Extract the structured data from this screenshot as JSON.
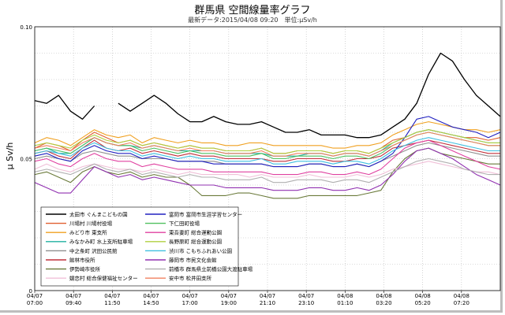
{
  "title": "群馬県 空間線量率グラフ",
  "subtitle": "最新データ:2015/04/08 09:20　単位:μSv/h",
  "chart_data": {
    "type": "line",
    "ylabel": "μ Sv/h",
    "ylim": [
      0,
      0.1
    ],
    "yticks": [
      {
        "value": 0.1,
        "label": "0.10"
      },
      {
        "value": 0.05,
        "label": "0.05"
      },
      {
        "value": 0.0,
        "label": "0"
      }
    ],
    "xticks": [
      {
        "line1": "04/07",
        "line2": "07:00"
      },
      {
        "line1": "04/07",
        "line2": "09:40"
      },
      {
        "line1": "04/07",
        "line2": "11:50"
      },
      {
        "line1": "04/07",
        "line2": "14:50"
      },
      {
        "line1": "04/07",
        "line2": "17:00"
      },
      {
        "line1": "04/07",
        "line2": "19:00"
      },
      {
        "line1": "04/07",
        "line2": "21:10"
      },
      {
        "line1": "04/07",
        "line2": "23:10"
      },
      {
        "line1": "04/08",
        "line2": "01:10"
      },
      {
        "line1": "04/08",
        "line2": "03:20"
      },
      {
        "line1": "04/08",
        "line2": "05:20"
      },
      {
        "line1": "04/08",
        "line2": "07:20"
      }
    ],
    "grid": true,
    "legend_position": "bottom-left",
    "series": [
      {
        "name": "太田市 ぐんまこどもの国",
        "color": "#000000",
        "values": [
          0.072,
          0.071,
          0.074,
          0.068,
          0.065,
          0.07,
          null,
          0.071,
          0.068,
          0.071,
          0.074,
          0.071,
          0.067,
          0.064,
          0.064,
          0.066,
          0.064,
          0.063,
          0.063,
          0.064,
          0.062,
          0.06,
          0.06,
          0.061,
          0.059,
          0.059,
          0.059,
          0.058,
          0.058,
          0.059,
          0.062,
          0.065,
          0.071,
          0.082,
          0.09,
          0.087,
          0.08,
          0.074,
          0.07,
          0.066
        ]
      },
      {
        "name": "川場村 川場村役場",
        "color": "#e06030",
        "values": [
          0.054,
          0.056,
          0.055,
          0.053,
          0.057,
          0.06,
          0.058,
          0.056,
          0.057,
          0.055,
          0.056,
          0.055,
          0.054,
          0.055,
          0.054,
          0.054,
          0.053,
          0.053,
          0.053,
          0.054,
          0.052,
          0.052,
          0.053,
          0.053,
          0.053,
          0.052,
          0.053,
          0.053,
          0.052,
          0.054,
          0.057,
          0.058,
          0.06,
          0.061,
          0.06,
          0.059,
          0.058,
          0.058,
          0.057,
          0.058
        ]
      },
      {
        "name": "みどり市 東支所",
        "color": "#f0a020",
        "values": [
          0.056,
          0.058,
          0.057,
          0.055,
          0.058,
          0.061,
          0.059,
          0.058,
          0.059,
          0.056,
          0.058,
          0.057,
          0.056,
          0.057,
          0.056,
          0.056,
          0.055,
          0.055,
          0.056,
          0.056,
          0.055,
          0.055,
          0.055,
          0.055,
          0.055,
          0.054,
          0.054,
          0.055,
          0.055,
          0.056,
          0.059,
          0.061,
          0.063,
          0.064,
          0.063,
          0.062,
          0.061,
          0.061,
          0.06,
          0.061
        ]
      },
      {
        "name": "みなかみ町 水上支所駐車場",
        "color": "#20b0a0",
        "values": [
          0.053,
          0.054,
          0.052,
          0.052,
          0.055,
          0.058,
          0.056,
          0.055,
          0.055,
          0.054,
          0.055,
          0.054,
          0.053,
          0.053,
          0.053,
          0.053,
          0.052,
          0.052,
          0.052,
          0.052,
          0.051,
          0.051,
          0.051,
          0.052,
          0.052,
          0.051,
          0.052,
          0.052,
          0.051,
          0.053,
          0.056,
          0.058,
          0.06,
          0.061,
          0.06,
          0.059,
          0.058,
          0.057,
          0.056,
          0.056
        ]
      },
      {
        "name": "中之条町 沢田公民館",
        "color": "#909090",
        "values": [
          0.05,
          0.051,
          0.05,
          0.049,
          0.052,
          0.053,
          0.052,
          0.051,
          0.051,
          0.05,
          0.05,
          0.05,
          0.049,
          0.049,
          0.049,
          0.049,
          0.048,
          0.048,
          0.048,
          0.048,
          0.047,
          0.047,
          0.047,
          0.048,
          0.048,
          0.047,
          0.047,
          0.048,
          0.047,
          0.049,
          0.051,
          0.053,
          0.055,
          0.056,
          0.055,
          0.054,
          0.053,
          0.052,
          0.051,
          0.051
        ]
      },
      {
        "name": "館林市役所",
        "color": "#c0303a",
        "values": [
          0.052,
          0.053,
          0.051,
          0.05,
          0.054,
          0.057,
          0.054,
          0.053,
          0.054,
          0.052,
          0.053,
          0.052,
          0.051,
          0.052,
          0.051,
          0.051,
          0.05,
          0.05,
          0.05,
          0.05,
          0.049,
          0.049,
          0.05,
          0.05,
          0.05,
          0.049,
          0.049,
          0.05,
          0.05,
          0.051,
          0.054,
          0.055,
          0.056,
          0.057,
          0.056,
          0.055,
          0.054,
          0.053,
          0.052,
          0.052
        ]
      },
      {
        "name": "伊勢崎市役所",
        "color": "#6a7a3a",
        "values": [
          0.044,
          0.045,
          0.043,
          0.041,
          0.045,
          0.047,
          0.045,
          0.044,
          0.045,
          0.043,
          0.044,
          0.043,
          0.043,
          0.04,
          0.036,
          0.036,
          0.036,
          0.037,
          0.037,
          0.036,
          0.035,
          0.035,
          0.035,
          0.036,
          0.036,
          0.036,
          0.036,
          0.036,
          0.037,
          0.038,
          0.045,
          0.05,
          0.053,
          0.054,
          0.052,
          0.051,
          0.05,
          0.049,
          0.048,
          0.048
        ]
      },
      {
        "name": "嬬恋村 総合保健福祉センター",
        "color": "#f0c0d8",
        "values": [
          0.046,
          0.048,
          0.046,
          0.045,
          0.047,
          0.048,
          0.047,
          0.046,
          0.046,
          0.045,
          0.046,
          0.045,
          0.044,
          0.045,
          0.044,
          0.044,
          0.044,
          0.044,
          0.043,
          0.044,
          0.043,
          0.043,
          0.043,
          0.044,
          0.043,
          0.043,
          0.043,
          0.044,
          0.043,
          0.044,
          0.046,
          0.047,
          0.048,
          0.049,
          0.048,
          0.047,
          0.046,
          0.045,
          0.045,
          0.044
        ]
      },
      {
        "name": "富岡市 富岡市生涯学習センター",
        "color": "#2020c0",
        "values": [
          0.051,
          0.052,
          0.05,
          0.049,
          0.053,
          0.055,
          0.053,
          0.052,
          0.052,
          0.05,
          0.051,
          0.05,
          0.049,
          0.049,
          0.049,
          0.048,
          0.048,
          0.048,
          0.048,
          0.048,
          0.047,
          0.047,
          0.047,
          0.048,
          0.048,
          0.047,
          0.047,
          0.048,
          0.047,
          0.049,
          0.052,
          0.058,
          0.065,
          0.066,
          0.064,
          0.062,
          0.061,
          0.06,
          0.058,
          0.06
        ]
      },
      {
        "name": "下仁田町役場",
        "color": "#50c060",
        "values": [
          0.053,
          0.054,
          0.053,
          0.052,
          0.055,
          0.058,
          0.056,
          0.055,
          0.055,
          0.053,
          0.054,
          0.053,
          0.052,
          0.053,
          0.052,
          0.052,
          0.051,
          0.051,
          0.051,
          0.052,
          0.05,
          0.05,
          0.051,
          0.051,
          0.051,
          0.05,
          0.051,
          0.051,
          0.05,
          0.052,
          0.055,
          0.057,
          0.059,
          0.06,
          0.059,
          0.058,
          0.057,
          0.056,
          0.055,
          0.055
        ]
      },
      {
        "name": "東吾妻町 総合運動公園",
        "color": "#e040a0",
        "values": [
          0.049,
          0.05,
          0.048,
          0.047,
          0.05,
          0.052,
          0.05,
          0.049,
          0.049,
          0.047,
          0.048,
          0.047,
          0.046,
          0.046,
          0.046,
          0.045,
          0.045,
          0.045,
          0.045,
          0.045,
          0.044,
          0.044,
          0.044,
          0.045,
          0.045,
          0.044,
          0.044,
          0.045,
          0.044,
          0.046,
          0.05,
          0.054,
          0.056,
          0.057,
          0.055,
          0.053,
          0.051,
          0.049,
          0.047,
          0.046
        ]
      },
      {
        "name": "長野原町 総合運動公園",
        "color": "#b0d040",
        "values": [
          0.055,
          0.056,
          0.055,
          0.054,
          0.057,
          0.059,
          0.057,
          0.056,
          0.057,
          0.055,
          0.056,
          0.055,
          0.054,
          0.055,
          0.054,
          0.054,
          0.053,
          0.053,
          0.053,
          0.054,
          0.052,
          0.052,
          0.053,
          0.053,
          0.053,
          0.052,
          0.053,
          0.053,
          0.052,
          0.054,
          0.056,
          0.058,
          0.06,
          0.061,
          0.06,
          0.059,
          0.058,
          0.057,
          0.056,
          0.056
        ]
      },
      {
        "name": "渋川市 こもちふれあい公園",
        "color": "#40c0e0",
        "values": [
          0.052,
          0.053,
          0.052,
          0.051,
          0.054,
          0.056,
          0.054,
          0.053,
          0.053,
          0.051,
          0.052,
          0.051,
          0.05,
          0.051,
          0.05,
          0.05,
          0.049,
          0.049,
          0.049,
          0.05,
          0.048,
          0.048,
          0.049,
          0.049,
          0.049,
          0.048,
          0.049,
          0.049,
          0.048,
          0.05,
          0.053,
          0.055,
          0.057,
          0.058,
          0.057,
          0.056,
          0.055,
          0.054,
          0.053,
          0.053
        ]
      },
      {
        "name": "藤岡市 市民文化会館",
        "color": "#9030b0",
        "values": [
          0.041,
          0.039,
          0.037,
          0.037,
          0.042,
          0.047,
          0.045,
          0.043,
          0.044,
          0.042,
          0.043,
          0.042,
          0.041,
          0.04,
          0.04,
          0.04,
          0.039,
          0.039,
          0.039,
          0.039,
          0.038,
          0.038,
          0.038,
          0.039,
          0.039,
          0.038,
          0.038,
          0.039,
          0.038,
          0.04,
          0.044,
          0.049,
          0.053,
          0.054,
          0.052,
          0.05,
          0.047,
          0.044,
          0.042,
          0.04
        ]
      },
      {
        "name": "前橋市 群馬県立前橋公園大渡駐車場",
        "color": "#b0b0b0",
        "values": [
          0.045,
          0.046,
          0.045,
          0.044,
          0.046,
          0.048,
          0.046,
          0.045,
          0.046,
          0.044,
          0.045,
          0.044,
          0.043,
          0.044,
          0.043,
          0.043,
          0.042,
          0.042,
          0.042,
          0.043,
          0.041,
          0.041,
          0.042,
          0.042,
          0.042,
          0.041,
          0.042,
          0.042,
          0.041,
          0.043,
          0.045,
          0.047,
          0.049,
          0.05,
          0.049,
          0.048,
          0.046,
          0.045,
          0.044,
          0.044
        ]
      },
      {
        "name": "安中市 松井田支所",
        "color": "#f08060",
        "values": [
          0.054,
          0.055,
          0.054,
          0.053,
          0.056,
          0.058,
          0.056,
          0.055,
          0.056,
          0.054,
          0.055,
          0.054,
          0.053,
          0.054,
          0.053,
          0.053,
          0.052,
          0.052,
          0.052,
          0.053,
          0.051,
          0.051,
          0.052,
          0.052,
          0.052,
          0.051,
          0.052,
          0.052,
          0.051,
          0.053,
          0.055,
          0.057,
          0.059,
          0.06,
          0.059,
          0.058,
          0.057,
          0.056,
          0.055,
          0.055
        ]
      }
    ]
  }
}
